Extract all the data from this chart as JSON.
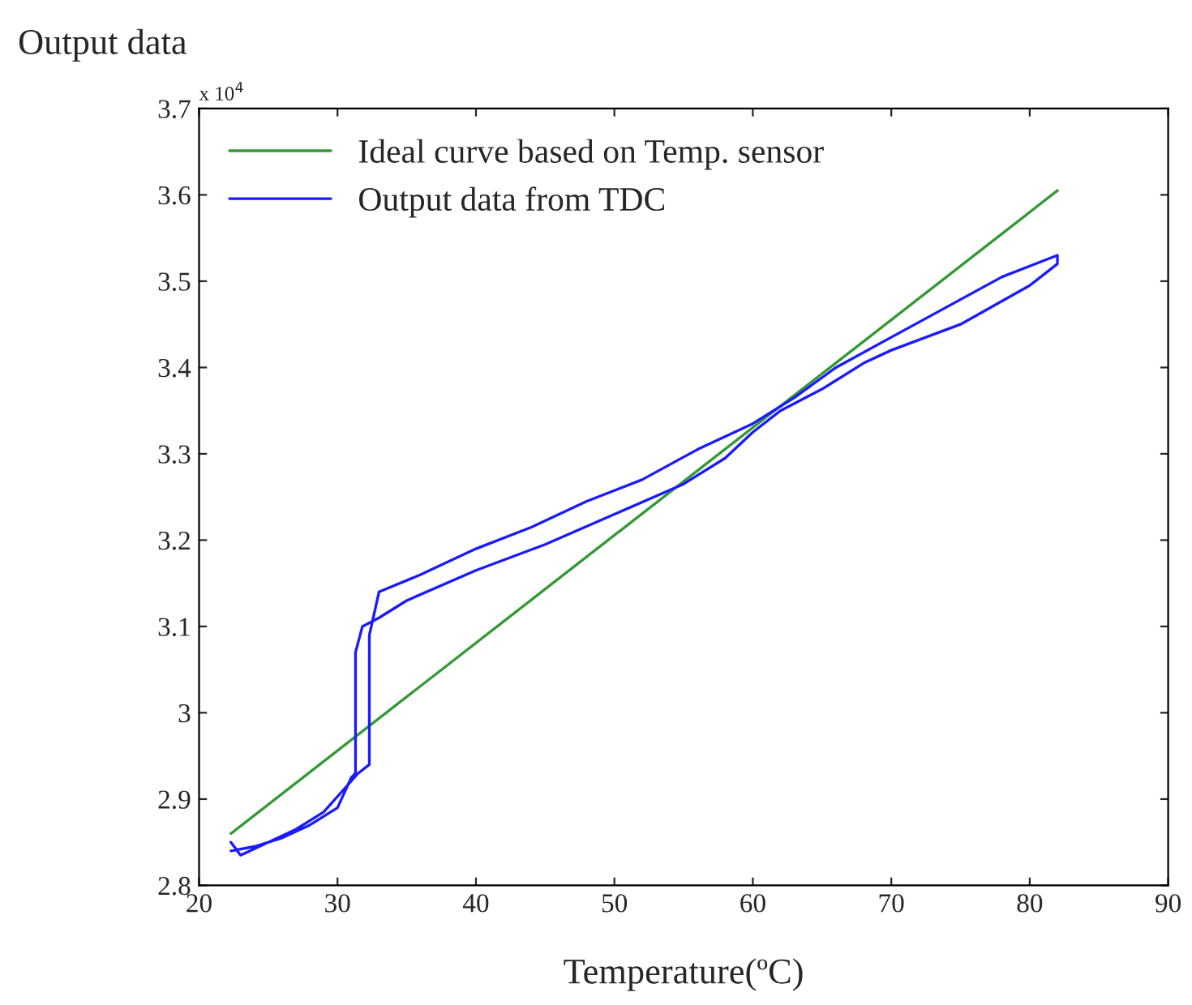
{
  "chart_data": {
    "type": "line",
    "xlabel": "Temperature(ºC)",
    "ylabel": "Output data",
    "annotations": [
      "x 10$^{4}$"
    ],
    "legend": "top left",
    "grid": false,
    "marker": "none",
    "line_style": "solid",
    "xlim": [
      20,
      90
    ],
    "xticks": [
      20,
      30,
      40,
      50,
      60,
      70,
      80,
      90
    ],
    "ylim": [
      2.8,
      3.7
    ],
    "yticks": [
      2.8,
      2.9,
      3,
      3.1,
      3.2,
      3.3,
      3.4,
      3.5,
      3.6,
      3.7
    ],
    "series": [
      {
        "name": "Ideal curve based on Temp. sensor",
        "color": "#339933",
        "x": [
          22.3,
          82
        ],
        "values": [
          2.86,
          3.605
        ]
      },
      {
        "name": "Output data from TDC",
        "color": "#1a1aff",
        "x": [
          22.3,
          24,
          26,
          28,
          30,
          31,
          31.3,
          31.3,
          31.8,
          33,
          35,
          40,
          45,
          50,
          55,
          58,
          60,
          62,
          65,
          68,
          70,
          75,
          80,
          82,
          82,
          78,
          74,
          70,
          66,
          63,
          60,
          56,
          52,
          48,
          44,
          40,
          36,
          33,
          32.3,
          32.3,
          31.5,
          29,
          27,
          25,
          23,
          22.3
        ],
        "values": [
          2.84,
          2.845,
          2.855,
          2.87,
          2.89,
          2.925,
          2.93,
          3.07,
          3.1,
          3.11,
          3.13,
          3.165,
          3.195,
          3.23,
          3.265,
          3.295,
          3.325,
          3.35,
          3.375,
          3.405,
          3.42,
          3.45,
          3.495,
          3.52,
          3.53,
          3.505,
          3.47,
          3.435,
          3.4,
          3.365,
          3.335,
          3.305,
          3.27,
          3.245,
          3.215,
          3.19,
          3.16,
          3.14,
          3.09,
          2.94,
          2.93,
          2.885,
          2.865,
          2.85,
          2.835,
          2.85
        ]
      }
    ]
  }
}
